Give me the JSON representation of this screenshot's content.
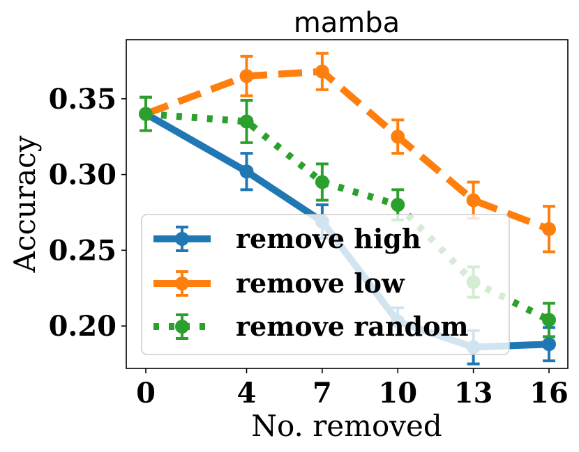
{
  "chart_data": {
    "type": "line",
    "title": "mamba",
    "xlabel": "No. removed",
    "ylabel": "Accuracy",
    "x": [
      0,
      4,
      7,
      10,
      13,
      16
    ],
    "xticks": [
      "0",
      "4",
      "7",
      "10",
      "13",
      "16"
    ],
    "yticks": [
      "0.20",
      "0.25",
      "0.30",
      "0.35"
    ],
    "ytick_values": [
      0.2,
      0.25,
      0.3,
      0.35
    ],
    "ylim": [
      0.172,
      0.389
    ],
    "legend_position": "lower-left",
    "series": [
      {
        "name": "remove high",
        "color": "#1f77b4",
        "linestyle": "solid",
        "values": [
          0.34,
          0.302,
          0.269,
          0.203,
          0.186,
          0.188
        ],
        "errors": [
          0.011,
          0.012,
          0.011,
          0.009,
          0.011,
          0.011
        ]
      },
      {
        "name": "remove low",
        "color": "#ff7f0e",
        "linestyle": "dashed",
        "values": [
          0.34,
          0.365,
          0.368,
          0.325,
          0.283,
          0.264
        ],
        "errors": [
          0.011,
          0.013,
          0.012,
          0.011,
          0.012,
          0.015
        ]
      },
      {
        "name": "remove random",
        "color": "#2ca02c",
        "linestyle": "dotted",
        "values": [
          0.34,
          0.335,
          0.295,
          0.28,
          0.229,
          0.204
        ],
        "errors": [
          0.011,
          0.014,
          0.012,
          0.01,
          0.01,
          0.011
        ]
      }
    ]
  }
}
